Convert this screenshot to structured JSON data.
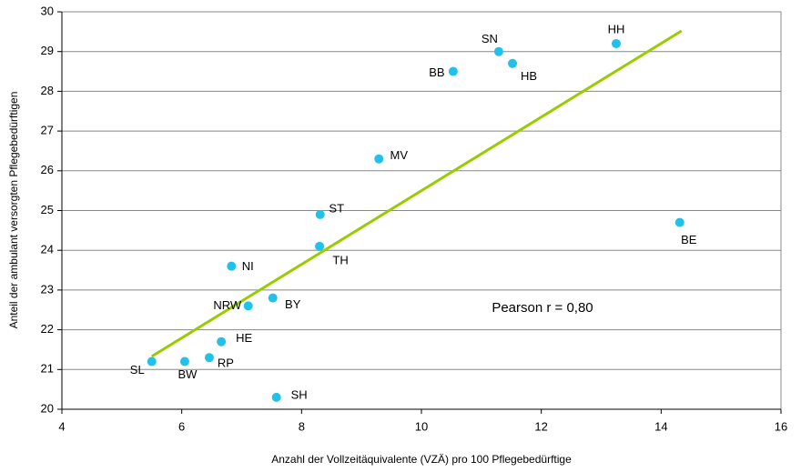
{
  "chart_data": {
    "type": "scatter",
    "xlabel": "Anzahl der Vollzeitäquivalente (VZÄ) pro 100 Pflegebedürftige",
    "ylabel": "Anteil der ambulant versorgten Pflegebedürftigen",
    "annotation": "Pearson r = 0,80",
    "series": [
      {
        "color": "#22c1ea",
        "labels": [
          "HH",
          "SN",
          "HB",
          "BB",
          "MV",
          "ST",
          "TH",
          "BE",
          "NI",
          "BY",
          "NRW",
          "HE",
          "RP",
          "BW",
          "SL",
          "SH"
        ],
        "x": [
          13.25,
          11.29,
          11.52,
          10.53,
          9.29,
          8.31,
          8.3,
          14.31,
          6.83,
          7.52,
          7.11,
          6.66,
          6.46,
          6.05,
          5.5,
          7.58
        ],
        "values": [
          29.2,
          29.0,
          28.7,
          28.5,
          26.3,
          24.9,
          24.1,
          24.7,
          23.6,
          22.8,
          22.6,
          21.7,
          21.3,
          21.2,
          21.2,
          20.3
        ]
      }
    ],
    "trendline": {
      "color": "#99cc00",
      "x": [
        5.5,
        14.34
      ],
      "values": [
        21.33,
        29.52
      ]
    },
    "xlim": [
      4,
      16
    ],
    "xticks": [
      4,
      6,
      8,
      10,
      12,
      14,
      16
    ],
    "ylim": [
      20,
      30
    ],
    "yticks": [
      20,
      21,
      22,
      23,
      24,
      25,
      26,
      27,
      28,
      29,
      30
    ],
    "grid": true
  }
}
